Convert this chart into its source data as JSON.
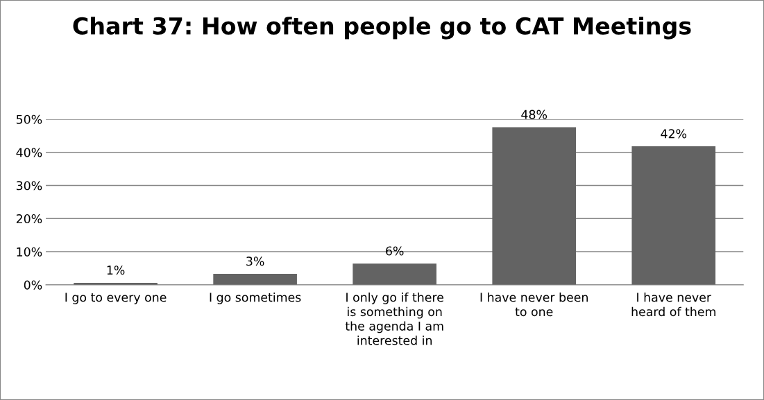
{
  "chart_data": {
    "type": "bar",
    "title": "Chart 37: How often people go to CAT Meetings",
    "categories": [
      "I go to every one",
      "I go sometimes",
      "I only go if there\nis something on\nthe agenda I am\ninterested in",
      "I have never been\nto one",
      "I have never\nheard of them"
    ],
    "values": [
      0.6,
      3.3,
      6.4,
      47.6,
      41.8
    ],
    "value_labels": [
      "1%",
      "3%",
      "6%",
      "48%",
      "42%"
    ],
    "color": "#636363",
    "ylim": [
      0,
      50
    ],
    "yticks": [
      {
        "value": 0,
        "label": "0%"
      },
      {
        "value": 10,
        "label": "10%"
      },
      {
        "value": 20,
        "label": "20%"
      },
      {
        "value": 30,
        "label": "30%"
      },
      {
        "value": 40,
        "label": "40%"
      },
      {
        "value": 50,
        "label": "50%"
      }
    ],
    "grid": "y"
  }
}
